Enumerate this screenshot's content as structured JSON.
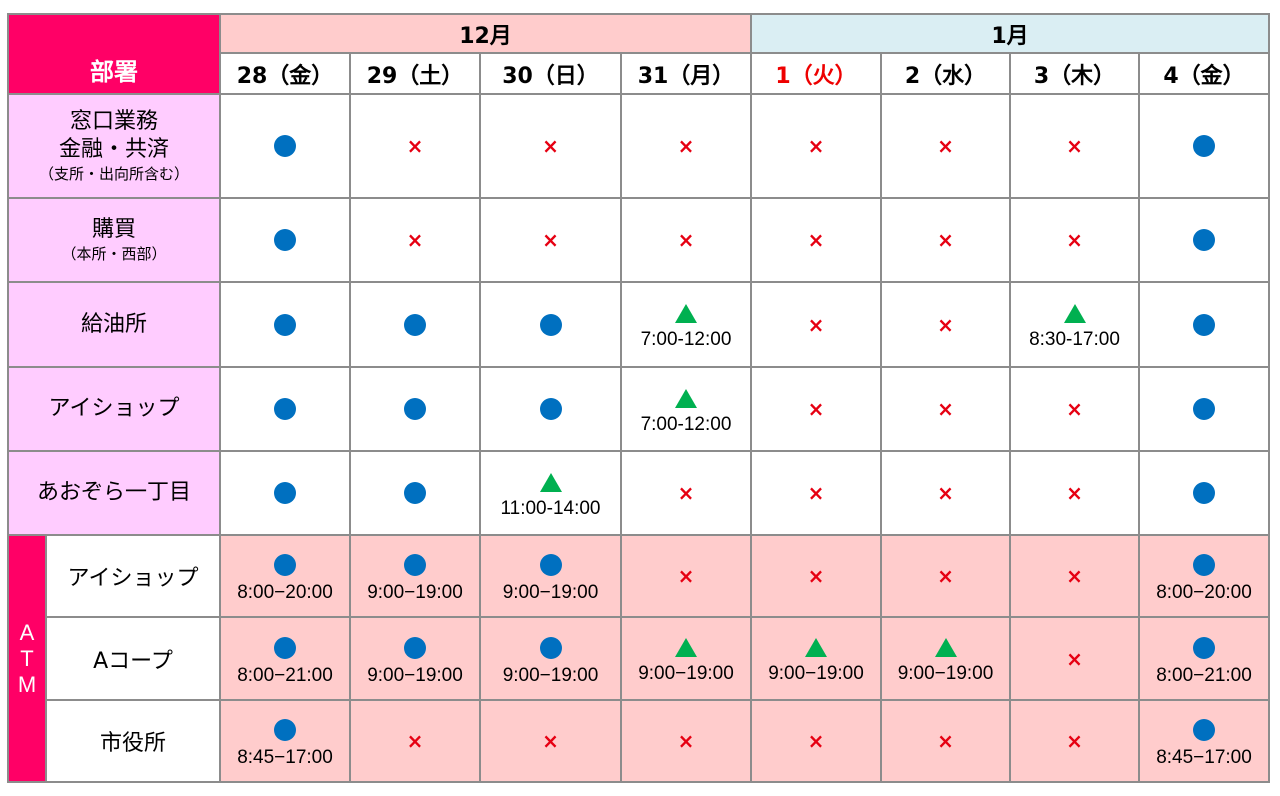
{
  "header": {
    "dept_label": "部署",
    "months": [
      {
        "label": "12月",
        "span": 4
      },
      {
        "label": "1月",
        "span": 4
      }
    ],
    "days": [
      {
        "label": "28（金）",
        "holiday": false
      },
      {
        "label": "29（土）",
        "holiday": false
      },
      {
        "label": "30（日）",
        "holiday": false
      },
      {
        "label": "31（月）",
        "holiday": false
      },
      {
        "label": "1（火）",
        "holiday": true
      },
      {
        "label": "2（水）",
        "holiday": false
      },
      {
        "label": "3（木）",
        "holiday": false
      },
      {
        "label": "4（金）",
        "holiday": false
      }
    ]
  },
  "atm_label": "ATM",
  "legend_icons": {
    "open": "blue-circle",
    "partial": "green-triangle",
    "closed": "red-cross"
  },
  "colors": {
    "accent": "#ff0066",
    "month12": "#ffcccc",
    "month1": "#daeef3",
    "dept": "#ffccff",
    "circle": "#0070c0",
    "triangle": "#00b050",
    "cross": "#e60012"
  },
  "rows": [
    {
      "lines": [
        "窓口業務",
        "金融・共済"
      ],
      "sub": "（支所・出向所含む）",
      "cells": [
        {
          "m": "o"
        },
        {
          "m": "x"
        },
        {
          "m": "x"
        },
        {
          "m": "x"
        },
        {
          "m": "x"
        },
        {
          "m": "x"
        },
        {
          "m": "x"
        },
        {
          "m": "o"
        }
      ]
    },
    {
      "lines": [
        "購買"
      ],
      "sub": "（本所・西部）",
      "cells": [
        {
          "m": "o"
        },
        {
          "m": "x"
        },
        {
          "m": "x"
        },
        {
          "m": "x"
        },
        {
          "m": "x"
        },
        {
          "m": "x"
        },
        {
          "m": "x"
        },
        {
          "m": "o"
        }
      ]
    },
    {
      "lines": [
        "給油所"
      ],
      "cells": [
        {
          "m": "o"
        },
        {
          "m": "o"
        },
        {
          "m": "o"
        },
        {
          "m": "t",
          "time": "7:00-12:00"
        },
        {
          "m": "x"
        },
        {
          "m": "x"
        },
        {
          "m": "t",
          "time": "8:30-17:00"
        },
        {
          "m": "o"
        }
      ]
    },
    {
      "lines": [
        "アイショップ"
      ],
      "cells": [
        {
          "m": "o"
        },
        {
          "m": "o"
        },
        {
          "m": "o"
        },
        {
          "m": "t",
          "time": "7:00-12:00"
        },
        {
          "m": "x"
        },
        {
          "m": "x"
        },
        {
          "m": "x"
        },
        {
          "m": "o"
        }
      ]
    },
    {
      "lines": [
        "あおぞら一丁目"
      ],
      "cells": [
        {
          "m": "o"
        },
        {
          "m": "o"
        },
        {
          "m": "t",
          "time": "11:00-14:00"
        },
        {
          "m": "x"
        },
        {
          "m": "x"
        },
        {
          "m": "x"
        },
        {
          "m": "x"
        },
        {
          "m": "o"
        }
      ]
    }
  ],
  "atm_rows": [
    {
      "name": "アイショップ",
      "cells": [
        {
          "m": "o",
          "time": "8:00−20:00"
        },
        {
          "m": "o",
          "time": "9:00−19:00"
        },
        {
          "m": "o",
          "time": "9:00−19:00"
        },
        {
          "m": "x"
        },
        {
          "m": "x"
        },
        {
          "m": "x"
        },
        {
          "m": "x"
        },
        {
          "m": "o",
          "time": "8:00−20:00"
        }
      ]
    },
    {
      "name": "Aコープ",
      "cells": [
        {
          "m": "o",
          "time": "8:00−21:00"
        },
        {
          "m": "o",
          "time": "9:00−19:00"
        },
        {
          "m": "o",
          "time": "9:00−19:00"
        },
        {
          "m": "t",
          "time": "9:00−19:00"
        },
        {
          "m": "t",
          "time": "9:00−19:00"
        },
        {
          "m": "t",
          "time": "9:00−19:00"
        },
        {
          "m": "x"
        },
        {
          "m": "o",
          "time": "8:00−21:00"
        }
      ]
    },
    {
      "name": "市役所",
      "cells": [
        {
          "m": "o",
          "time": "8:45−17:00"
        },
        {
          "m": "x"
        },
        {
          "m": "x"
        },
        {
          "m": "x"
        },
        {
          "m": "x"
        },
        {
          "m": "x"
        },
        {
          "m": "x"
        },
        {
          "m": "o",
          "time": "8:45−17:00"
        }
      ]
    }
  ],
  "cross_glyph": "×"
}
